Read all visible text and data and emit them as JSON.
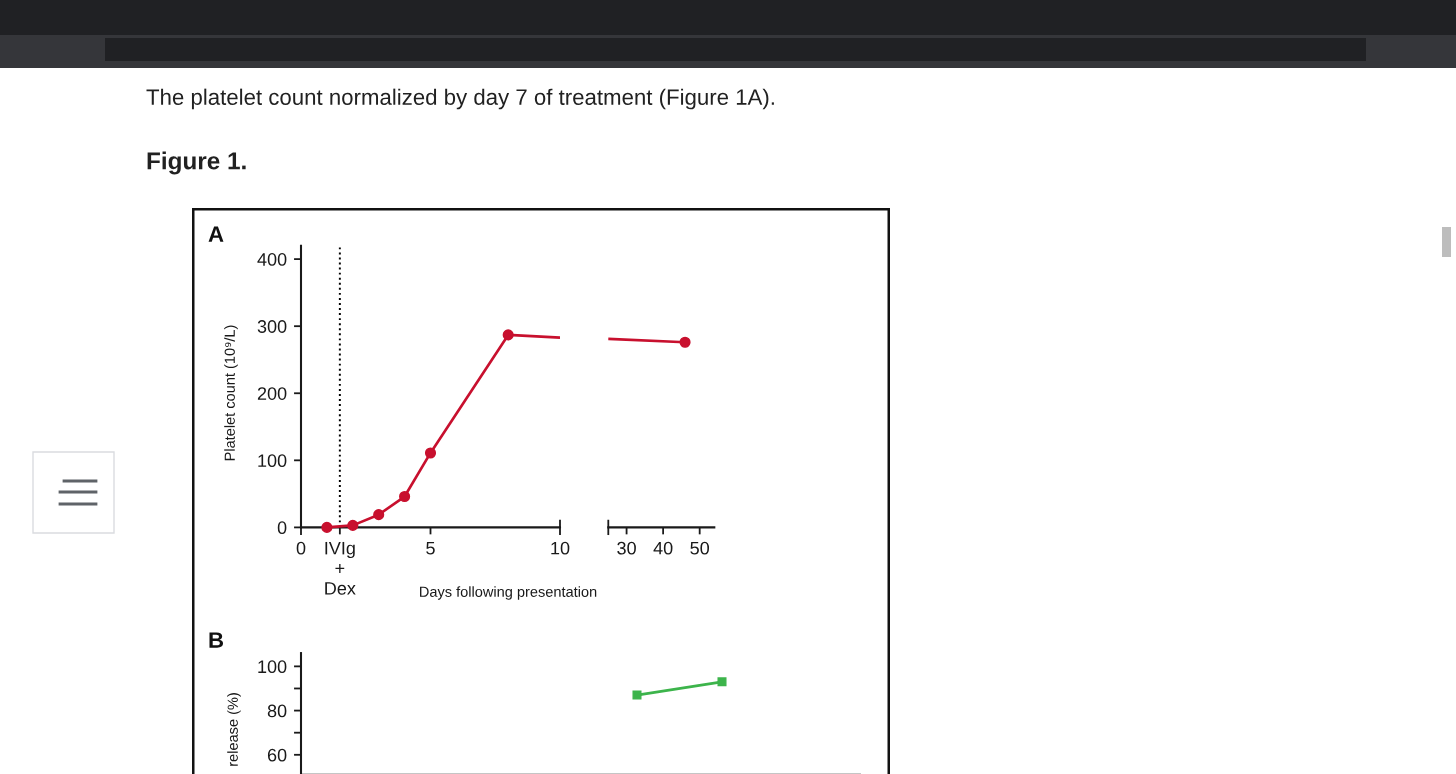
{
  "chart_data": [
    {
      "type": "line",
      "title": "A",
      "xlabel": "Days following presentation",
      "ylabel": "Platelet count (10⁹/L)",
      "annotations": [
        "The platelet count normalized by day 7 of treatment (Figure 1A).",
        "Figure 1."
      ],
      "series": [
        {
          "color": "#c8102e",
          "marker": "circle",
          "x": [
            1,
            2,
            3,
            4,
            5,
            8
          ],
          "values": [
            0,
            3,
            19,
            46,
            111,
            287
          ]
        },
        {
          "color": "#c8102e",
          "marker": "none",
          "x": [
            8,
            10
          ],
          "values": [
            287,
            283
          ]
        }
      ],
      "xlim": [
        0,
        10
      ],
      "xticks": [
        0,
        {
          "value": 1.5,
          "label": "IVIg\n+\nDex"
        },
        5,
        10
      ],
      "ylim": [
        0,
        420
      ],
      "yticks": [
        0,
        100,
        200,
        300,
        400
      ],
      "ref_lines": [
        {
          "axis": "x",
          "value": 1.5,
          "color": "#000000",
          "line_style": "dotted"
        }
      ]
    },
    {
      "type": "line",
      "series": [
        {
          "color": "#c8102e",
          "marker": "none",
          "x": [
            25,
            46
          ],
          "values": [
            281,
            276
          ]
        },
        {
          "color": "#c8102e",
          "marker": "circle",
          "x": [
            46
          ],
          "values": [
            276
          ]
        }
      ],
      "xlim": [
        25,
        54
      ],
      "xticks": [
        {
          "value": 25,
          "label": null
        },
        30,
        40,
        50
      ],
      "ylim": [
        0,
        400
      ],
      "yticks": [
        0,
        100,
        200,
        300,
        400
      ],
      "tick_labels": "x"
    },
    {
      "type": "line",
      "title": "B",
      "ylabel": "release (%)",
      "categories": [
        null,
        null,
        null,
        null,
        null,
        null
      ],
      "series": [
        {
          "color": "#3cb44b",
          "values": [
            null,
            null,
            null,
            87,
            93,
            null
          ]
        }
      ],
      "marker": "square",
      "ylim": [
        51,
        106
      ],
      "yticks": [
        60,
        {
          "value": 70,
          "label": null
        },
        80,
        {
          "value": 90,
          "label": null
        },
        100
      ],
      "tick_labels": "y"
    }
  ]
}
